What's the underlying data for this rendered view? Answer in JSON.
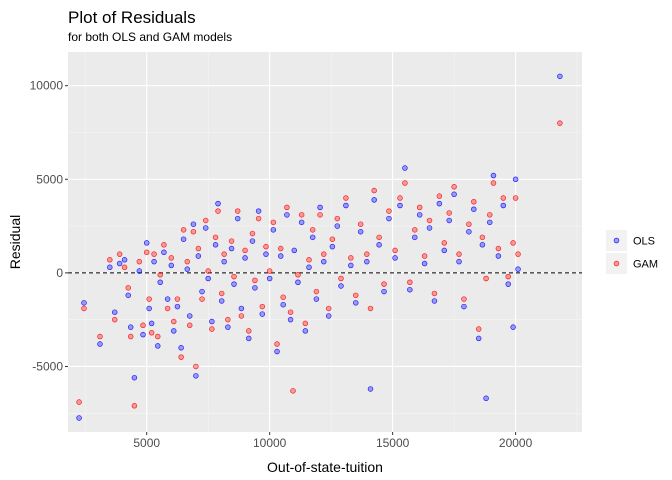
{
  "chart_data": {
    "type": "scatter",
    "title": "Plot of Residuals",
    "subtitle": "for both OLS and GAM models",
    "xlabel": "Out-of-state-tuition",
    "ylabel": "Residual",
    "xlim": [
      1800,
      22700
    ],
    "ylim": [
      -8500,
      11800
    ],
    "xticks": [
      5000,
      10000,
      15000,
      20000
    ],
    "xtick_labels": [
      "5000",
      "10000",
      "15000",
      "20000"
    ],
    "yticks": [
      -5000,
      0,
      5000,
      10000
    ],
    "ytick_labels": [
      "-5000",
      "0",
      "5000",
      "10000"
    ],
    "hline": 0,
    "grid": true,
    "legend_position": "right",
    "series": [
      {
        "name": "OLS",
        "color": "#0000ff",
        "points": [
          [
            2250,
            -7750
          ],
          [
            2450,
            -1600
          ],
          [
            3100,
            -3800
          ],
          [
            3500,
            300
          ],
          [
            3700,
            -2100
          ],
          [
            3900,
            500
          ],
          [
            4100,
            700
          ],
          [
            4250,
            -1200
          ],
          [
            4350,
            -2900
          ],
          [
            4500,
            -5600
          ],
          [
            4700,
            100
          ],
          [
            4850,
            -3300
          ],
          [
            5000,
            1600
          ],
          [
            5100,
            -1900
          ],
          [
            5200,
            -2700
          ],
          [
            5300,
            600
          ],
          [
            5450,
            -3900
          ],
          [
            5550,
            -500
          ],
          [
            5700,
            1100
          ],
          [
            5850,
            -1400
          ],
          [
            6000,
            400
          ],
          [
            6100,
            -3100
          ],
          [
            6250,
            -1800
          ],
          [
            6400,
            -4000
          ],
          [
            6500,
            1800
          ],
          [
            6650,
            200
          ],
          [
            6750,
            -2300
          ],
          [
            6900,
            2600
          ],
          [
            7000,
            -5500
          ],
          [
            7100,
            900
          ],
          [
            7250,
            -1000
          ],
          [
            7400,
            2400
          ],
          [
            7500,
            -300
          ],
          [
            7650,
            -2600
          ],
          [
            7800,
            1500
          ],
          [
            7900,
            3700
          ],
          [
            8050,
            -1500
          ],
          [
            8150,
            600
          ],
          [
            8300,
            -2900
          ],
          [
            8450,
            1300
          ],
          [
            8550,
            -600
          ],
          [
            8700,
            2900
          ],
          [
            8850,
            -1900
          ],
          [
            9000,
            800
          ],
          [
            9150,
            -3500
          ],
          [
            9300,
            1700
          ],
          [
            9400,
            -800
          ],
          [
            9550,
            3300
          ],
          [
            9700,
            -2200
          ],
          [
            9850,
            1000
          ],
          [
            10000,
            -300
          ],
          [
            10150,
            2300
          ],
          [
            10300,
            -4200
          ],
          [
            10450,
            900
          ],
          [
            10550,
            -1700
          ],
          [
            10700,
            3100
          ],
          [
            10850,
            -2500
          ],
          [
            11000,
            1200
          ],
          [
            11150,
            -500
          ],
          [
            11300,
            2700
          ],
          [
            11450,
            -3100
          ],
          [
            11600,
            300
          ],
          [
            11750,
            1900
          ],
          [
            11900,
            -1400
          ],
          [
            12050,
            3500
          ],
          [
            12200,
            600
          ],
          [
            12400,
            -2300
          ],
          [
            12550,
            1400
          ],
          [
            12750,
            2500
          ],
          [
            12900,
            -700
          ],
          [
            13100,
            3600
          ],
          [
            13300,
            400
          ],
          [
            13500,
            -1600
          ],
          [
            13700,
            2200
          ],
          [
            13950,
            600
          ],
          [
            14100,
            -6200
          ],
          [
            14250,
            3900
          ],
          [
            14450,
            1500
          ],
          [
            14650,
            -1000
          ],
          [
            14850,
            2900
          ],
          [
            15100,
            800
          ],
          [
            15300,
            3600
          ],
          [
            15500,
            5600
          ],
          [
            15700,
            -900
          ],
          [
            15900,
            1900
          ],
          [
            16100,
            3100
          ],
          [
            16300,
            500
          ],
          [
            16500,
            2400
          ],
          [
            16700,
            -1500
          ],
          [
            16900,
            3700
          ],
          [
            17100,
            1200
          ],
          [
            17300,
            2800
          ],
          [
            17500,
            4200
          ],
          [
            17700,
            600
          ],
          [
            17900,
            -1800
          ],
          [
            18100,
            2200
          ],
          [
            18300,
            3400
          ],
          [
            18500,
            -3500
          ],
          [
            18650,
            1500
          ],
          [
            18800,
            -6700
          ],
          [
            18950,
            2700
          ],
          [
            19100,
            5200
          ],
          [
            19300,
            900
          ],
          [
            19500,
            3600
          ],
          [
            19700,
            -600
          ],
          [
            19900,
            -2900
          ],
          [
            20000,
            5000
          ],
          [
            20100,
            200
          ],
          [
            21800,
            10500
          ]
        ]
      },
      {
        "name": "GAM",
        "color": "#ff0000",
        "points": [
          [
            2250,
            -6900
          ],
          [
            2450,
            -1900
          ],
          [
            3100,
            -3400
          ],
          [
            3500,
            700
          ],
          [
            3700,
            -2500
          ],
          [
            3900,
            1000
          ],
          [
            4100,
            300
          ],
          [
            4250,
            -800
          ],
          [
            4350,
            -3400
          ],
          [
            4500,
            -7100
          ],
          [
            4700,
            600
          ],
          [
            4850,
            -2800
          ],
          [
            5000,
            1100
          ],
          [
            5100,
            -1400
          ],
          [
            5200,
            -3200
          ],
          [
            5300,
            1000
          ],
          [
            5450,
            -3400
          ],
          [
            5550,
            -100
          ],
          [
            5700,
            1500
          ],
          [
            5850,
            -1900
          ],
          [
            6000,
            800
          ],
          [
            6100,
            -2600
          ],
          [
            6250,
            -1400
          ],
          [
            6400,
            -4500
          ],
          [
            6500,
            2300
          ],
          [
            6650,
            600
          ],
          [
            6750,
            -2800
          ],
          [
            6900,
            2200
          ],
          [
            7000,
            -5000
          ],
          [
            7100,
            1300
          ],
          [
            7250,
            -1400
          ],
          [
            7400,
            2800
          ],
          [
            7500,
            100
          ],
          [
            7650,
            -3000
          ],
          [
            7800,
            1900
          ],
          [
            7900,
            3300
          ],
          [
            8050,
            -1100
          ],
          [
            8150,
            1000
          ],
          [
            8300,
            -2500
          ],
          [
            8450,
            1700
          ],
          [
            8550,
            -200
          ],
          [
            8700,
            3300
          ],
          [
            8850,
            -2300
          ],
          [
            9000,
            1200
          ],
          [
            9150,
            -3100
          ],
          [
            9300,
            2100
          ],
          [
            9400,
            -400
          ],
          [
            9550,
            2900
          ],
          [
            9700,
            -1800
          ],
          [
            9850,
            1400
          ],
          [
            10000,
            100
          ],
          [
            10150,
            2700
          ],
          [
            10300,
            -3800
          ],
          [
            10450,
            1300
          ],
          [
            10550,
            -1300
          ],
          [
            10700,
            3500
          ],
          [
            10850,
            -2100
          ],
          [
            10950,
            -6300
          ],
          [
            11150,
            -100
          ],
          [
            11300,
            3100
          ],
          [
            11450,
            -2700
          ],
          [
            11600,
            700
          ],
          [
            11750,
            2300
          ],
          [
            11900,
            -1000
          ],
          [
            12050,
            3100
          ],
          [
            12200,
            1000
          ],
          [
            12400,
            -1900
          ],
          [
            12550,
            1800
          ],
          [
            12750,
            2900
          ],
          [
            12900,
            -300
          ],
          [
            13100,
            4000
          ],
          [
            13300,
            800
          ],
          [
            13500,
            -1200
          ],
          [
            13700,
            2600
          ],
          [
            13950,
            1000
          ],
          [
            14100,
            -1900
          ],
          [
            14250,
            4400
          ],
          [
            14450,
            1900
          ],
          [
            14650,
            -600
          ],
          [
            14850,
            3300
          ],
          [
            15100,
            1200
          ],
          [
            15300,
            4000
          ],
          [
            15500,
            4800
          ],
          [
            15700,
            -500
          ],
          [
            15900,
            2300
          ],
          [
            16100,
            3500
          ],
          [
            16300,
            900
          ],
          [
            16500,
            2800
          ],
          [
            16700,
            -1100
          ],
          [
            16900,
            4100
          ],
          [
            17100,
            1600
          ],
          [
            17300,
            3200
          ],
          [
            17500,
            4600
          ],
          [
            17700,
            1000
          ],
          [
            17900,
            -1400
          ],
          [
            18100,
            2600
          ],
          [
            18300,
            3800
          ],
          [
            18500,
            -3000
          ],
          [
            18650,
            1900
          ],
          [
            18800,
            -300
          ],
          [
            18950,
            3100
          ],
          [
            19100,
            4800
          ],
          [
            19300,
            1300
          ],
          [
            19500,
            4000
          ],
          [
            19700,
            -200
          ],
          [
            19900,
            1600
          ],
          [
            20000,
            4000
          ],
          [
            20100,
            1000
          ],
          [
            21800,
            8000
          ]
        ]
      }
    ]
  }
}
